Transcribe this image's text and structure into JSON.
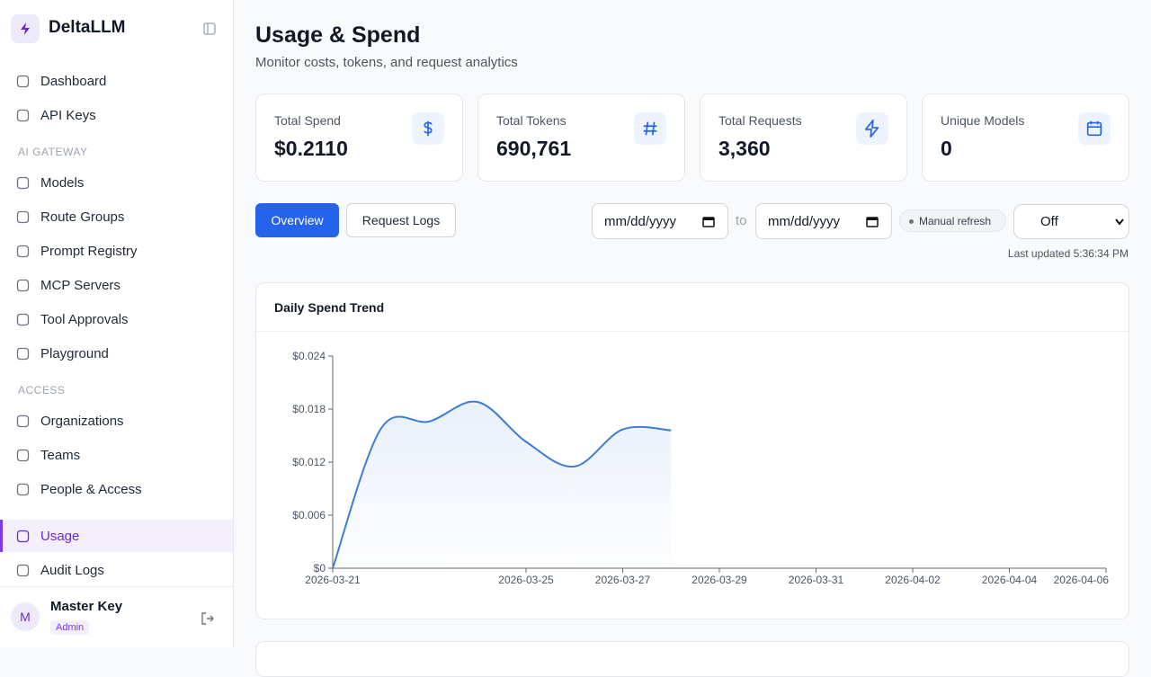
{
  "sidebar": {
    "brand": "DeltaLLM",
    "groups": [
      {
        "items": [
          {
            "label": "Dashboard"
          },
          {
            "label": "API Keys"
          }
        ]
      },
      {
        "heading": "AI GATEWAY",
        "items": [
          {
            "label": "Models"
          },
          {
            "label": "Route Groups"
          },
          {
            "label": "Prompt Registry"
          },
          {
            "label": "MCP Servers"
          },
          {
            "label": "Tool Approvals"
          },
          {
            "label": "Playground"
          }
        ]
      },
      {
        "heading": "ACCESS",
        "items": [
          {
            "label": "Organizations"
          },
          {
            "label": "Teams"
          },
          {
            "label": "People & Access"
          }
        ]
      },
      {
        "items": [
          {
            "label": "Usage",
            "active": true
          },
          {
            "label": "Audit Logs"
          }
        ]
      }
    ],
    "user": {
      "initial": "M",
      "name": "Master Key",
      "role": "Admin"
    }
  },
  "header": {
    "title": "Usage & Spend",
    "subtitle": "Monitor costs, tokens, and request analytics"
  },
  "stats": [
    {
      "label": "Total Spend",
      "value": "$0.2110"
    },
    {
      "label": "Total Tokens",
      "value": "690,761"
    },
    {
      "label": "Total Requests",
      "value": "3,360"
    },
    {
      "label": "Unique Models",
      "value": "0"
    }
  ],
  "tabs": [
    "Overview",
    "Request Logs"
  ],
  "filters": {
    "from": "mm/dd/yyyy",
    "separator": "to",
    "to": "mm/dd/yyyy",
    "refresh_badge": "Manual refresh",
    "refresh_select": "Off",
    "last_updated": "Last updated 5:36:34 PM"
  },
  "chart_data": {
    "type": "line",
    "title": "Daily Spend Trend",
    "x": [
      "2026-03-21",
      "2026-03-22",
      "2026-03-23",
      "2026-03-24",
      "2026-03-25",
      "2026-03-26",
      "2026-03-27",
      "2026-03-28"
    ],
    "series": [
      {
        "name": "Spend",
        "color": "#3b7dd8",
        "values": [
          0,
          0.0158,
          0.0166,
          0.0188,
          0.0143,
          0.0115,
          0.0157,
          0.0156
        ]
      }
    ],
    "xlim": [
      "2026-03-21",
      "2026-04-06"
    ],
    "xticks": [
      "2026-03-21",
      "2026-03-25",
      "2026-03-27",
      "2026-03-29",
      "2026-03-31",
      "2026-04-02",
      "2026-04-04",
      "2026-04-06"
    ],
    "ylim": [
      0,
      0.024
    ],
    "yticks": [
      {
        "value": 0,
        "label": "$0"
      },
      {
        "value": 0.006,
        "label": "$0.006"
      },
      {
        "value": 0.012,
        "label": "$0.012"
      },
      {
        "value": 0.018,
        "label": "$0.018"
      },
      {
        "value": 0.024,
        "label": "$0.024"
      }
    ]
  }
}
